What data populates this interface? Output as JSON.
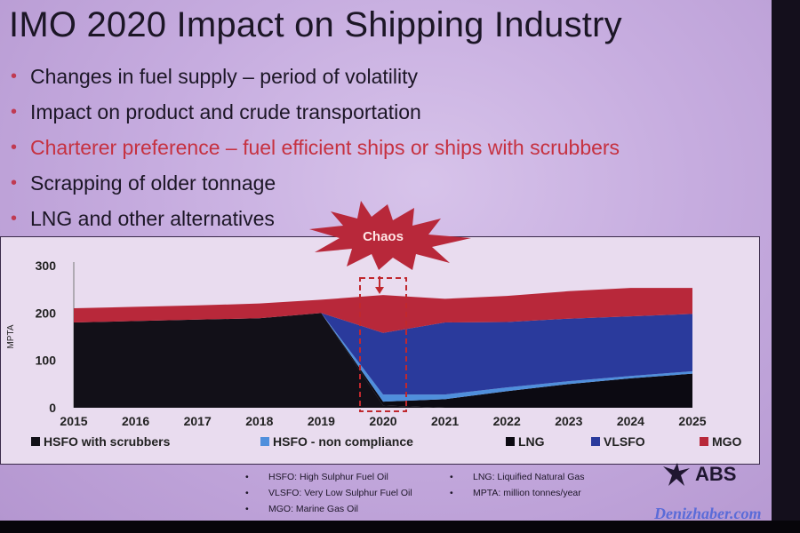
{
  "slide": {
    "title": "IMO 2020 Impact on Shipping Industry",
    "bullets": [
      {
        "text": "Changes in fuel supply – period of volatility",
        "highlight": false
      },
      {
        "text": "Impact on product and crude transportation",
        "highlight": false
      },
      {
        "text": "Charterer preference – fuel efficient ships or ships with scrubbers",
        "highlight": true
      },
      {
        "text": "Scrapping of older tonnage",
        "highlight": false
      },
      {
        "text": "LNG and other alternatives",
        "highlight": false
      }
    ],
    "bullet_symbol": "•",
    "callout": "Chaos",
    "footnotes_left": [
      "HSFO: High Sulphur Fuel Oil",
      "VLSFO: Very Low Sulphur Fuel Oil",
      "MGO: Marine Gas Oil"
    ],
    "footnotes_right": [
      "LNG: Liquified Natural Gas",
      "MPTA: million tonnes/year"
    ],
    "logo_text": "ABS",
    "watermark": "Denizhaber.com"
  },
  "colors": {
    "hsfo_scrubbers": "#121018",
    "hsfo_noncompliance": "#4f8fdc",
    "lng": "#0c0a12",
    "vlsfo": "#2a3a9c",
    "mgo": "#b8283a",
    "accent_red": "#c63140",
    "callout_burst": "#b8283a"
  },
  "chart_data": {
    "type": "area",
    "x": [
      2015,
      2016,
      2017,
      2018,
      2019,
      2020,
      2021,
      2022,
      2023,
      2024,
      2025
    ],
    "xlabel": "",
    "ylabel": "MPTA",
    "ylim": [
      0,
      300
    ],
    "yticks": [
      0,
      100,
      200,
      300
    ],
    "stacked": true,
    "legend_position": "bottom",
    "series": [
      {
        "name": "HSFO with scrubbers",
        "key": "hsfo_scrubbers",
        "values": [
          180,
          183,
          186,
          189,
          200,
          5,
          0,
          0,
          0,
          0,
          0
        ]
      },
      {
        "name": "LNG",
        "key": "lng",
        "values": [
          0,
          0,
          0,
          0,
          0,
          8,
          18,
          35,
          50,
          62,
          72
        ]
      },
      {
        "name": "HSFO - non compliance",
        "key": "hsfo_noncompliance",
        "values": [
          0,
          0,
          0,
          0,
          0,
          15,
          10,
          8,
          6,
          5,
          5
        ]
      },
      {
        "name": "VLSFO",
        "key": "vlsfo",
        "values": [
          0,
          0,
          0,
          0,
          0,
          130,
          152,
          138,
          132,
          126,
          121
        ]
      },
      {
        "name": "MGO",
        "key": "mgo",
        "values": [
          30,
          30,
          30,
          31,
          28,
          80,
          50,
          55,
          58,
          60,
          55
        ]
      }
    ],
    "legend_order": [
      "hsfo_scrubbers",
      "hsfo_noncompliance",
      "lng",
      "vlsfo",
      "mgo"
    ],
    "annotation": "Chaos",
    "highlight_x": 2020
  }
}
